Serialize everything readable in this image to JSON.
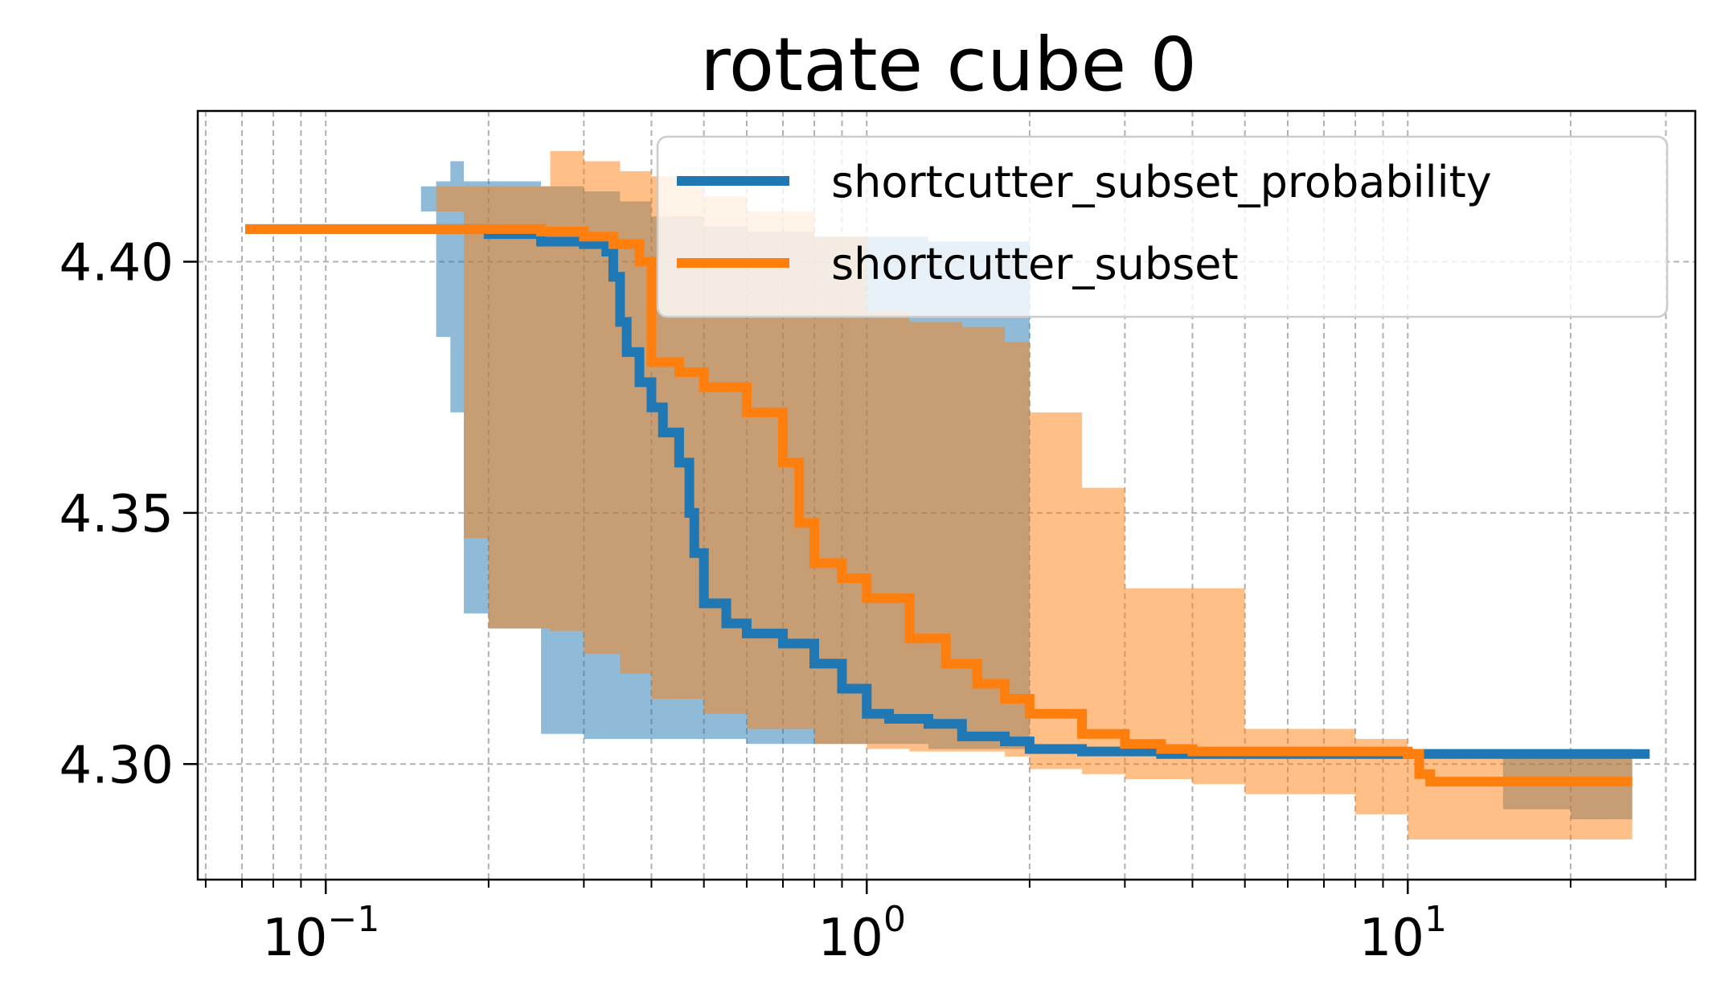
{
  "chart_data": {
    "type": "line",
    "title": "rotate cube 0",
    "xlabel": "",
    "ylabel": "",
    "x_scale": "log",
    "xlim": [
      0.058,
      34
    ],
    "ylim": [
      4.277,
      4.43
    ],
    "grid": true,
    "legend_position": "top-right",
    "x_major_ticks": [
      {
        "value": 0.1,
        "base": "10",
        "exp": "−1"
      },
      {
        "value": 1,
        "base": "10",
        "exp": "0"
      },
      {
        "value": 10,
        "base": "10",
        "exp": "1"
      }
    ],
    "y_ticks": [
      {
        "value": 4.3,
        "label": "4.30"
      },
      {
        "value": 4.35,
        "label": "4.35"
      },
      {
        "value": 4.4,
        "label": "4.40"
      }
    ],
    "series": [
      {
        "name": "shortcutter_subset_probability",
        "color": "#1f77b4",
        "x": [
          0.071,
          0.15,
          0.2,
          0.25,
          0.3,
          0.33,
          0.34,
          0.35,
          0.36,
          0.38,
          0.4,
          0.42,
          0.45,
          0.47,
          0.48,
          0.5,
          0.55,
          0.6,
          0.7,
          0.8,
          0.9,
          1.0,
          1.1,
          1.3,
          1.5,
          1.8,
          2.0,
          2.5,
          3.0,
          3.5,
          4.0,
          6.0,
          10.0,
          20.0,
          28.0
        ],
        "y": [
          4.4065,
          4.4065,
          4.4055,
          4.404,
          4.4035,
          4.402,
          4.397,
          4.388,
          4.382,
          4.376,
          4.371,
          4.366,
          4.36,
          4.35,
          4.342,
          4.332,
          4.328,
          4.326,
          4.324,
          4.32,
          4.315,
          4.31,
          4.309,
          4.308,
          4.3055,
          4.3045,
          4.303,
          4.3025,
          4.3025,
          4.302,
          4.302,
          4.302,
          4.302,
          4.302,
          4.302
        ]
      },
      {
        "name": "shortcutter_subset",
        "color": "#ff7f0e",
        "x": [
          0.071,
          0.2,
          0.25,
          0.3,
          0.34,
          0.38,
          0.4,
          0.45,
          0.5,
          0.6,
          0.7,
          0.75,
          0.8,
          0.9,
          1.0,
          1.2,
          1.4,
          1.6,
          1.8,
          2.0,
          2.5,
          3.0,
          3.5,
          4.0,
          5.0,
          7.0,
          9.0,
          10.0,
          10.5,
          11.0,
          12.0,
          15.0,
          20.0,
          26.0
        ],
        "y": [
          4.4065,
          4.4065,
          4.406,
          4.405,
          4.4035,
          4.4,
          4.38,
          4.378,
          4.375,
          4.37,
          4.36,
          4.348,
          4.34,
          4.337,
          4.333,
          4.325,
          4.32,
          4.316,
          4.313,
          4.31,
          4.306,
          4.304,
          4.303,
          4.3025,
          4.3025,
          4.3025,
          4.3025,
          4.302,
          4.298,
          4.2965,
          4.2965,
          4.2965,
          4.2965,
          4.2965
        ]
      }
    ],
    "bands": [
      {
        "series": "shortcutter_subset_probability",
        "color": "#1f77b4",
        "opacity": 0.5,
        "x": [
          0.15,
          0.16,
          0.17,
          0.18,
          0.2,
          0.25,
          0.3,
          0.35,
          0.4,
          0.5,
          0.6,
          0.8,
          1.0,
          1.3,
          1.5,
          2.0,
          3.0,
          5.0,
          10.0,
          15.0,
          20.0,
          26.0
        ],
        "upper": [
          4.415,
          4.416,
          4.42,
          4.416,
          4.416,
          4.415,
          4.414,
          4.412,
          4.409,
          4.407,
          4.406,
          4.405,
          4.405,
          4.404,
          4.404,
          4.303,
          4.303,
          4.303,
          4.303,
          4.303,
          4.303,
          4.303
        ],
        "lower": [
          4.41,
          4.385,
          4.37,
          4.33,
          4.327,
          4.306,
          4.305,
          4.305,
          4.305,
          4.305,
          4.304,
          4.304,
          4.304,
          4.303,
          4.303,
          4.302,
          4.302,
          4.302,
          4.302,
          4.291,
          4.289,
          4.289
        ]
      },
      {
        "series": "shortcutter_subset",
        "color": "#ff7f0e",
        "opacity": 0.5,
        "x": [
          0.16,
          0.18,
          0.2,
          0.25,
          0.26,
          0.3,
          0.35,
          0.4,
          0.5,
          0.6,
          0.8,
          1.0,
          1.2,
          1.5,
          1.8,
          2.0,
          2.5,
          3.0,
          4.0,
          5.0,
          8.0,
          10.0,
          12.0,
          20.0,
          26.0
        ],
        "upper": [
          4.415,
          4.415,
          4.415,
          4.415,
          4.422,
          4.42,
          4.418,
          4.417,
          4.413,
          4.41,
          4.405,
          4.39,
          4.388,
          4.387,
          4.384,
          4.37,
          4.355,
          4.335,
          4.335,
          4.307,
          4.305,
          4.303,
          4.302,
          4.302,
          4.302
        ],
        "lower": [
          4.41,
          4.345,
          4.327,
          4.327,
          4.3265,
          4.322,
          4.318,
          4.313,
          4.31,
          4.307,
          4.304,
          4.303,
          4.3025,
          4.3025,
          4.3015,
          4.299,
          4.298,
          4.297,
          4.296,
          4.294,
          4.29,
          4.285,
          4.285,
          4.285,
          4.285
        ]
      }
    ]
  }
}
